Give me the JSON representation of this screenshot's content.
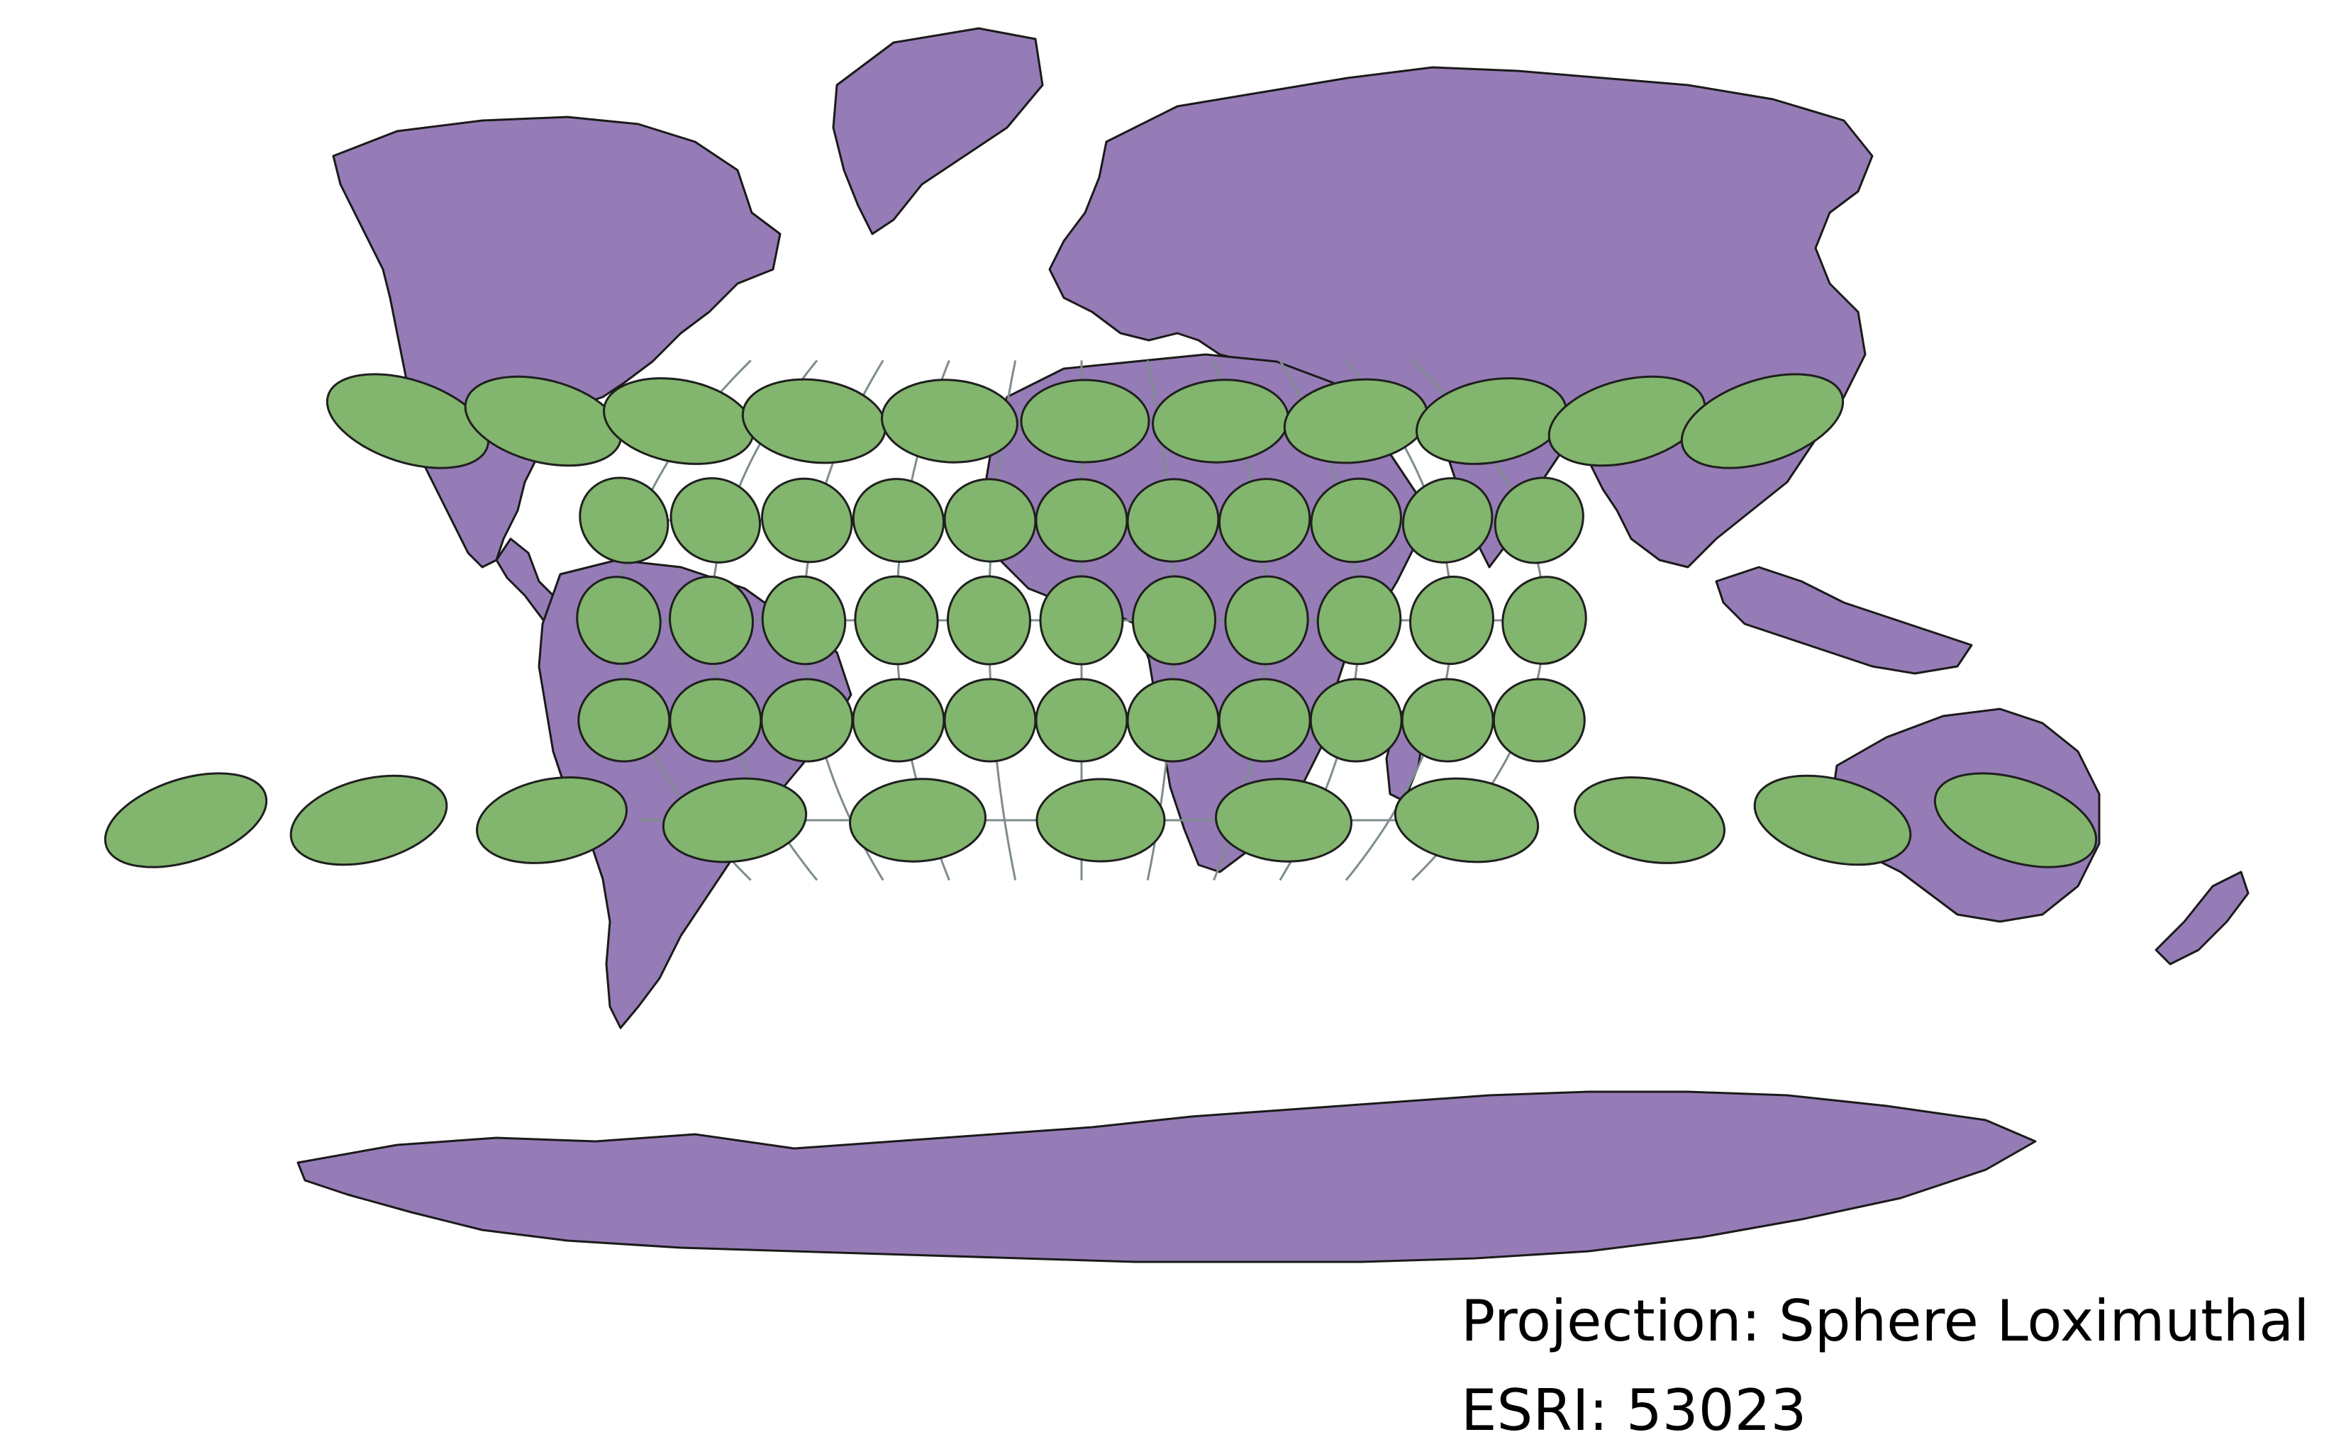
{
  "caption": {
    "projection": "Projection: Sphere Loximuthal",
    "esri": "ESRI: 53023"
  },
  "map": {
    "projection": "Sphere Loximuthal",
    "esri_code": 53023,
    "graticule_latitudes": [
      60,
      30,
      0,
      -30,
      -60
    ],
    "graticule_longitudes": [
      -150,
      -120,
      -90,
      -60,
      -30,
      0,
      30,
      60,
      90,
      120,
      150
    ],
    "indicatrix_latitudes": [
      60,
      30,
      0,
      -30,
      -60
    ],
    "indicatrix_longitudes_by_row": [
      [
        -120,
        -90,
        -60,
        -30,
        0,
        30,
        60,
        90,
        120,
        150,
        180
      ],
      [
        -150,
        -120,
        -90,
        -60,
        -30,
        0,
        30,
        60,
        90,
        120,
        150
      ],
      [
        -150,
        -120,
        -90,
        -60,
        -30,
        0,
        30,
        60,
        90,
        120,
        150
      ],
      [
        -150,
        -120,
        -90,
        -60,
        -30,
        0,
        30,
        60,
        90,
        120,
        150
      ],
      [
        -150,
        -120,
        -90,
        -60,
        -30,
        0,
        30,
        60,
        90,
        120,
        150
      ]
    ],
    "colors": {
      "land": "#967cb6",
      "land_border": "#1a1a1a",
      "graticule": "#7f8c8d",
      "indicatrix_fill": "#82b56d",
      "indicatrix_stroke": "#1f1f1f",
      "background": "#ffffff"
    }
  }
}
